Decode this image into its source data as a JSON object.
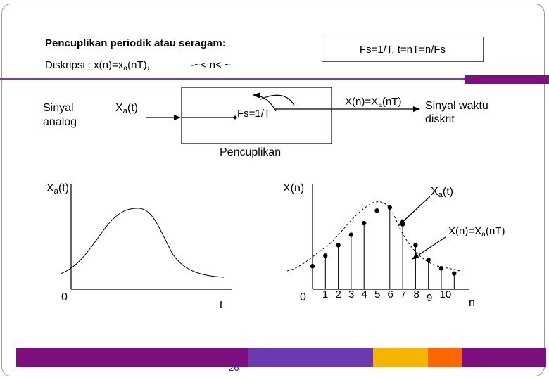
{
  "header": {
    "title": "Pencuplikan periodik atau seragam:",
    "desc_prefix": "Diskripsi : x(n)=x",
    "desc_sub": "a",
    "desc_suffix": "(nT),",
    "range": "-~< n< ~",
    "formula_box": "Fs=1/T, t=nT=n/Fs"
  },
  "diagram": {
    "input_label_line1": "Sinyal",
    "input_label_line2": "analog",
    "input_signal": "X",
    "input_signal_sub": "a",
    "input_signal_suffix": "(t)",
    "sampler_rate": "Fs=1/T",
    "output_formula": "X(n)=X",
    "output_formula_sub": "a",
    "output_formula_suffix": "(nT)",
    "output_label_line1": "Sinyal waktu",
    "output_label_line2": "diskrit",
    "caption": "Pencuplikan"
  },
  "plot_left": {
    "ylabel": "X",
    "ylabel_sub": "a",
    "ylabel_suffix": "(t)",
    "origin": "0",
    "xlabel": "t"
  },
  "plot_right": {
    "ylabel": "X(n)",
    "origin": "0",
    "xticks": [
      "1",
      "2",
      "3",
      "4",
      "5",
      "6",
      "7",
      "8",
      "9",
      "10"
    ],
    "xlabel": "n",
    "annotation1": "X",
    "annotation1_sub": "a",
    "annotation1_suffix": "(t)",
    "annotation2": "X(n)=X",
    "annotation2_sub": "a",
    "annotation2_suffix": "(nT)",
    "samples": [
      0.22,
      0.32,
      0.42,
      0.52,
      0.63,
      0.75,
      0.78,
      0.62,
      0.42,
      0.28,
      0.2,
      0.15
    ],
    "color_accent": "#7b3fa3"
  },
  "footer": {
    "page_number": "26",
    "colors": [
      "#7e0f7f",
      "#6a3ab0",
      "#f4b400",
      "#ff6600",
      "#7e0f7f"
    ]
  }
}
